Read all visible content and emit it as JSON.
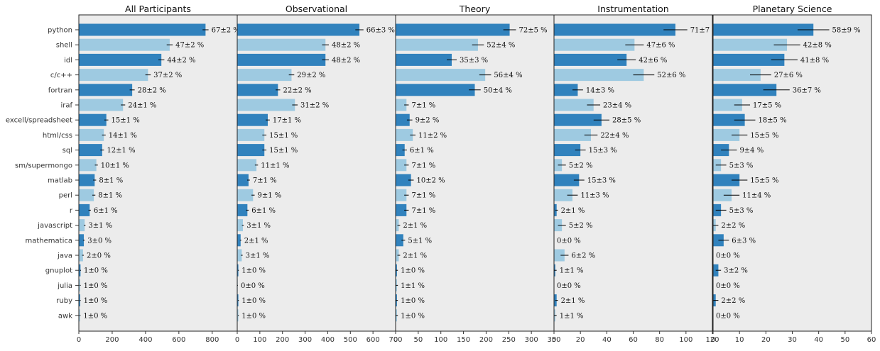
{
  "chart_data": {
    "type": "bar",
    "orientation": "horizontal",
    "grid": false,
    "colors": {
      "dark": "#3182bd",
      "light": "#9ecae1",
      "background": "#ececec",
      "error_bar": "#000000"
    },
    "categories": [
      "python",
      "shell",
      "idl",
      "c/c++",
      "fortran",
      "iraf",
      "excell/spreadsheet",
      "html/css",
      "sql",
      "sm/supermongo",
      "matlab",
      "perl",
      "r",
      "javascript",
      "mathematica",
      "java",
      "gnuplot",
      "julia",
      "ruby",
      "awk"
    ],
    "panels": [
      {
        "title": "All Participants",
        "xlim": [
          0,
          950
        ],
        "xticks": [
          0,
          200,
          400,
          600,
          800
        ],
        "xtick_labels": [
          "0",
          "200",
          "400",
          "600",
          "800"
        ],
        "values": [
          760,
          545,
          495,
          415,
          320,
          265,
          165,
          150,
          140,
          105,
          95,
          90,
          65,
          35,
          30,
          25,
          10,
          8,
          8,
          7
        ],
        "errors": [
          18,
          18,
          18,
          16,
          15,
          13,
          12,
          11,
          11,
          9,
          9,
          9,
          7,
          5,
          5,
          5,
          3,
          3,
          3,
          3
        ],
        "labels": [
          "67±2 %",
          "47±2 %",
          "44±2 %",
          "37±2 %",
          "28±2 %",
          "24±1 %",
          "15±1 %",
          "14±1 %",
          "12±1 %",
          "10±1 %",
          "8±1 %",
          "8±1 %",
          "6±1 %",
          "3±1 %",
          "3±0 %",
          "2±0 %",
          "1±0 %",
          "1±0 %",
          "1±0 %",
          "1±0 %"
        ]
      },
      {
        "title": "Observational",
        "xlim": [
          0,
          700
        ],
        "xticks": [
          0,
          100,
          200,
          300,
          400,
          500,
          600,
          700
        ],
        "xtick_labels": [
          "0",
          "100",
          "200",
          "300",
          "400",
          "500",
          "600",
          "700"
        ],
        "values": [
          540,
          390,
          390,
          240,
          180,
          255,
          135,
          120,
          120,
          85,
          50,
          70,
          45,
          25,
          15,
          20,
          5,
          2,
          5,
          5
        ],
        "errors": [
          18,
          15,
          15,
          12,
          10,
          12,
          9,
          9,
          9,
          7,
          6,
          7,
          6,
          4,
          3,
          4,
          2,
          1,
          2,
          2
        ],
        "labels": [
          "66±3 %",
          "48±2 %",
          "48±2 %",
          "29±2 %",
          "22±2 %",
          "31±2 %",
          "17±1 %",
          "15±1 %",
          "15±1 %",
          "11±1 %",
          "7±1 %",
          "9±1 %",
          "6±1 %",
          "3±1 %",
          "2±1 %",
          "3±1 %",
          "1±0 %",
          "0±0 %",
          "1±0 %",
          "1±0 %"
        ]
      },
      {
        "title": "Theory",
        "xlim": [
          0,
          350
        ],
        "xticks": [
          0,
          50,
          100,
          150,
          200,
          250,
          300,
          350
        ],
        "xtick_labels": [
          "0",
          "50",
          "100",
          "150",
          "200",
          "250",
          "300",
          "350"
        ],
        "values": [
          252,
          182,
          124,
          198,
          175,
          24,
          31,
          38,
          20,
          24,
          34,
          24,
          24,
          7,
          17,
          7,
          3,
          3,
          3,
          3
        ],
        "errors": [
          14,
          13,
          11,
          13,
          13,
          5,
          6,
          6,
          5,
          5,
          6,
          5,
          5,
          3,
          4,
          3,
          2,
          2,
          2,
          2
        ],
        "labels": [
          "72±5 %",
          "52±4 %",
          "35±3 %",
          "56±4 %",
          "50±4 %",
          "7±1 %",
          "9±2 %",
          "11±2 %",
          "6±1 %",
          "7±1 %",
          "10±2 %",
          "7±1 %",
          "7±1 %",
          "2±1 %",
          "5±1 %",
          "2±1 %",
          "1±0 %",
          "1±1 %",
          "1±0 %",
          "1±0 %"
        ]
      },
      {
        "title": "Instrumentation",
        "xlim": [
          0,
          120
        ],
        "xticks": [
          0,
          20,
          40,
          60,
          80,
          100,
          120
        ],
        "xtick_labels": [
          "0",
          "20",
          "40",
          "60",
          "80",
          "100",
          "120"
        ],
        "values": [
          92,
          61,
          55,
          68,
          18,
          30,
          36,
          28,
          20,
          6,
          19,
          14,
          2,
          6,
          0,
          8,
          1,
          0,
          2,
          1
        ],
        "errors": [
          9,
          7,
          7,
          8,
          4,
          5,
          6,
          5,
          4,
          3,
          4,
          4,
          1,
          3,
          0,
          3,
          1,
          0,
          1,
          1
        ],
        "labels": [
          "71±7 %",
          "47±6 %",
          "42±6 %",
          "52±6 %",
          "14±3 %",
          "23±4 %",
          "28±5 %",
          "22±4 %",
          "15±3 %",
          "5±2 %",
          "15±3 %",
          "11±3 %",
          "2±1 %",
          "5±2 %",
          "0±0 %",
          "6±2 %",
          "1±1 %",
          "0±0 %",
          "2±1 %",
          "1±1 %"
        ]
      },
      {
        "title": "Planetary Science",
        "xlim": [
          0,
          60
        ],
        "xticks": [
          0,
          10,
          20,
          30,
          40,
          50,
          60
        ],
        "xtick_labels": [
          "0",
          "10",
          "20",
          "30",
          "40",
          "50",
          "60"
        ],
        "values": [
          38,
          28,
          27,
          18,
          24,
          11,
          12,
          10,
          6,
          3,
          10,
          7,
          3,
          1,
          4,
          0,
          2,
          0,
          1,
          0
        ],
        "errors": [
          6,
          5,
          5,
          4,
          5,
          3,
          4,
          3,
          3,
          2,
          3,
          3,
          2,
          1,
          2,
          0,
          1,
          0,
          1,
          0
        ],
        "labels": [
          "58±9 %",
          "42±8 %",
          "41±8 %",
          "27±6 %",
          "36±7 %",
          "17±5 %",
          "18±5 %",
          "15±5 %",
          "9±4 %",
          "5±3 %",
          "15±5 %",
          "11±4 %",
          "5±3 %",
          "2±2 %",
          "6±3 %",
          "0±0 %",
          "3±2 %",
          "0±0 %",
          "2±2 %",
          "0±0 %"
        ]
      }
    ]
  }
}
